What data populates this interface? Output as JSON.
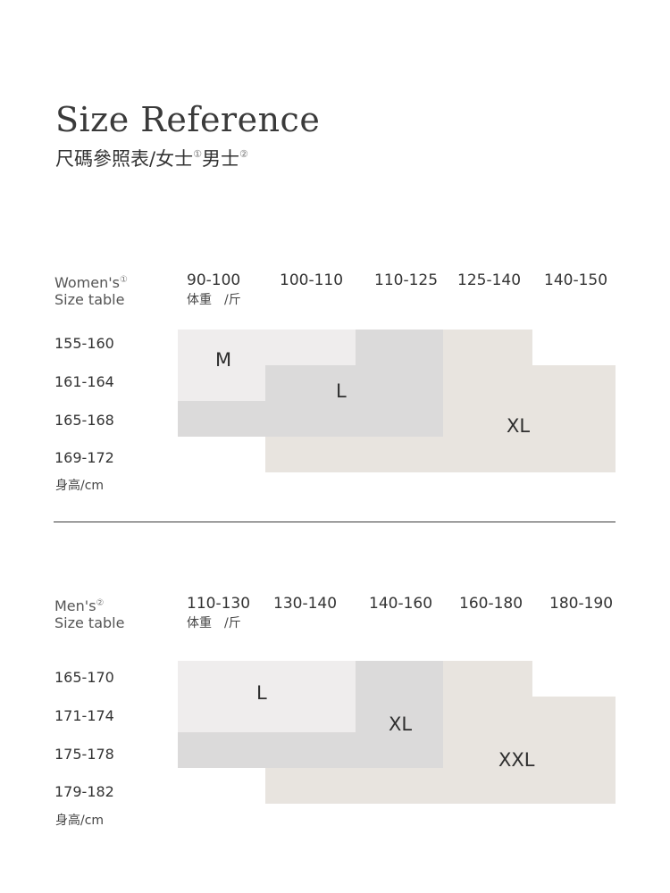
{
  "header": {
    "title": "Size Reference",
    "subtitle_main": "尺碼參照表/女士",
    "women_mark": "①",
    "subtitle_men": "男士",
    "men_mark": "②"
  },
  "women": {
    "table_title_1": "Women's",
    "mark": "①",
    "table_title_2": "Size table",
    "weight_unit": "体重　/斤",
    "height_unit": "身高/cm",
    "columns": [
      "90-100",
      "100-110",
      "110-125",
      "125-140",
      "140-150"
    ],
    "rows": [
      "155-160",
      "161-164",
      "165-168",
      "169-172"
    ],
    "sizes": [
      "M",
      "L",
      "XL"
    ]
  },
  "men": {
    "table_title_1": "Men's",
    "mark": "②",
    "table_title_2": "Size table",
    "weight_unit": "体重　/斤",
    "height_unit": "身高/cm",
    "columns": [
      "110-130",
      "130-140",
      "140-160",
      "160-180",
      "180-190"
    ],
    "rows": [
      "165-170",
      "171-174",
      "175-178",
      "179-182"
    ],
    "sizes": [
      "L",
      "XL",
      "XXL"
    ]
  },
  "colors": {
    "light_gray": "#efeded",
    "mid_gray": "#dbdada",
    "beige": "#e8e4df"
  }
}
